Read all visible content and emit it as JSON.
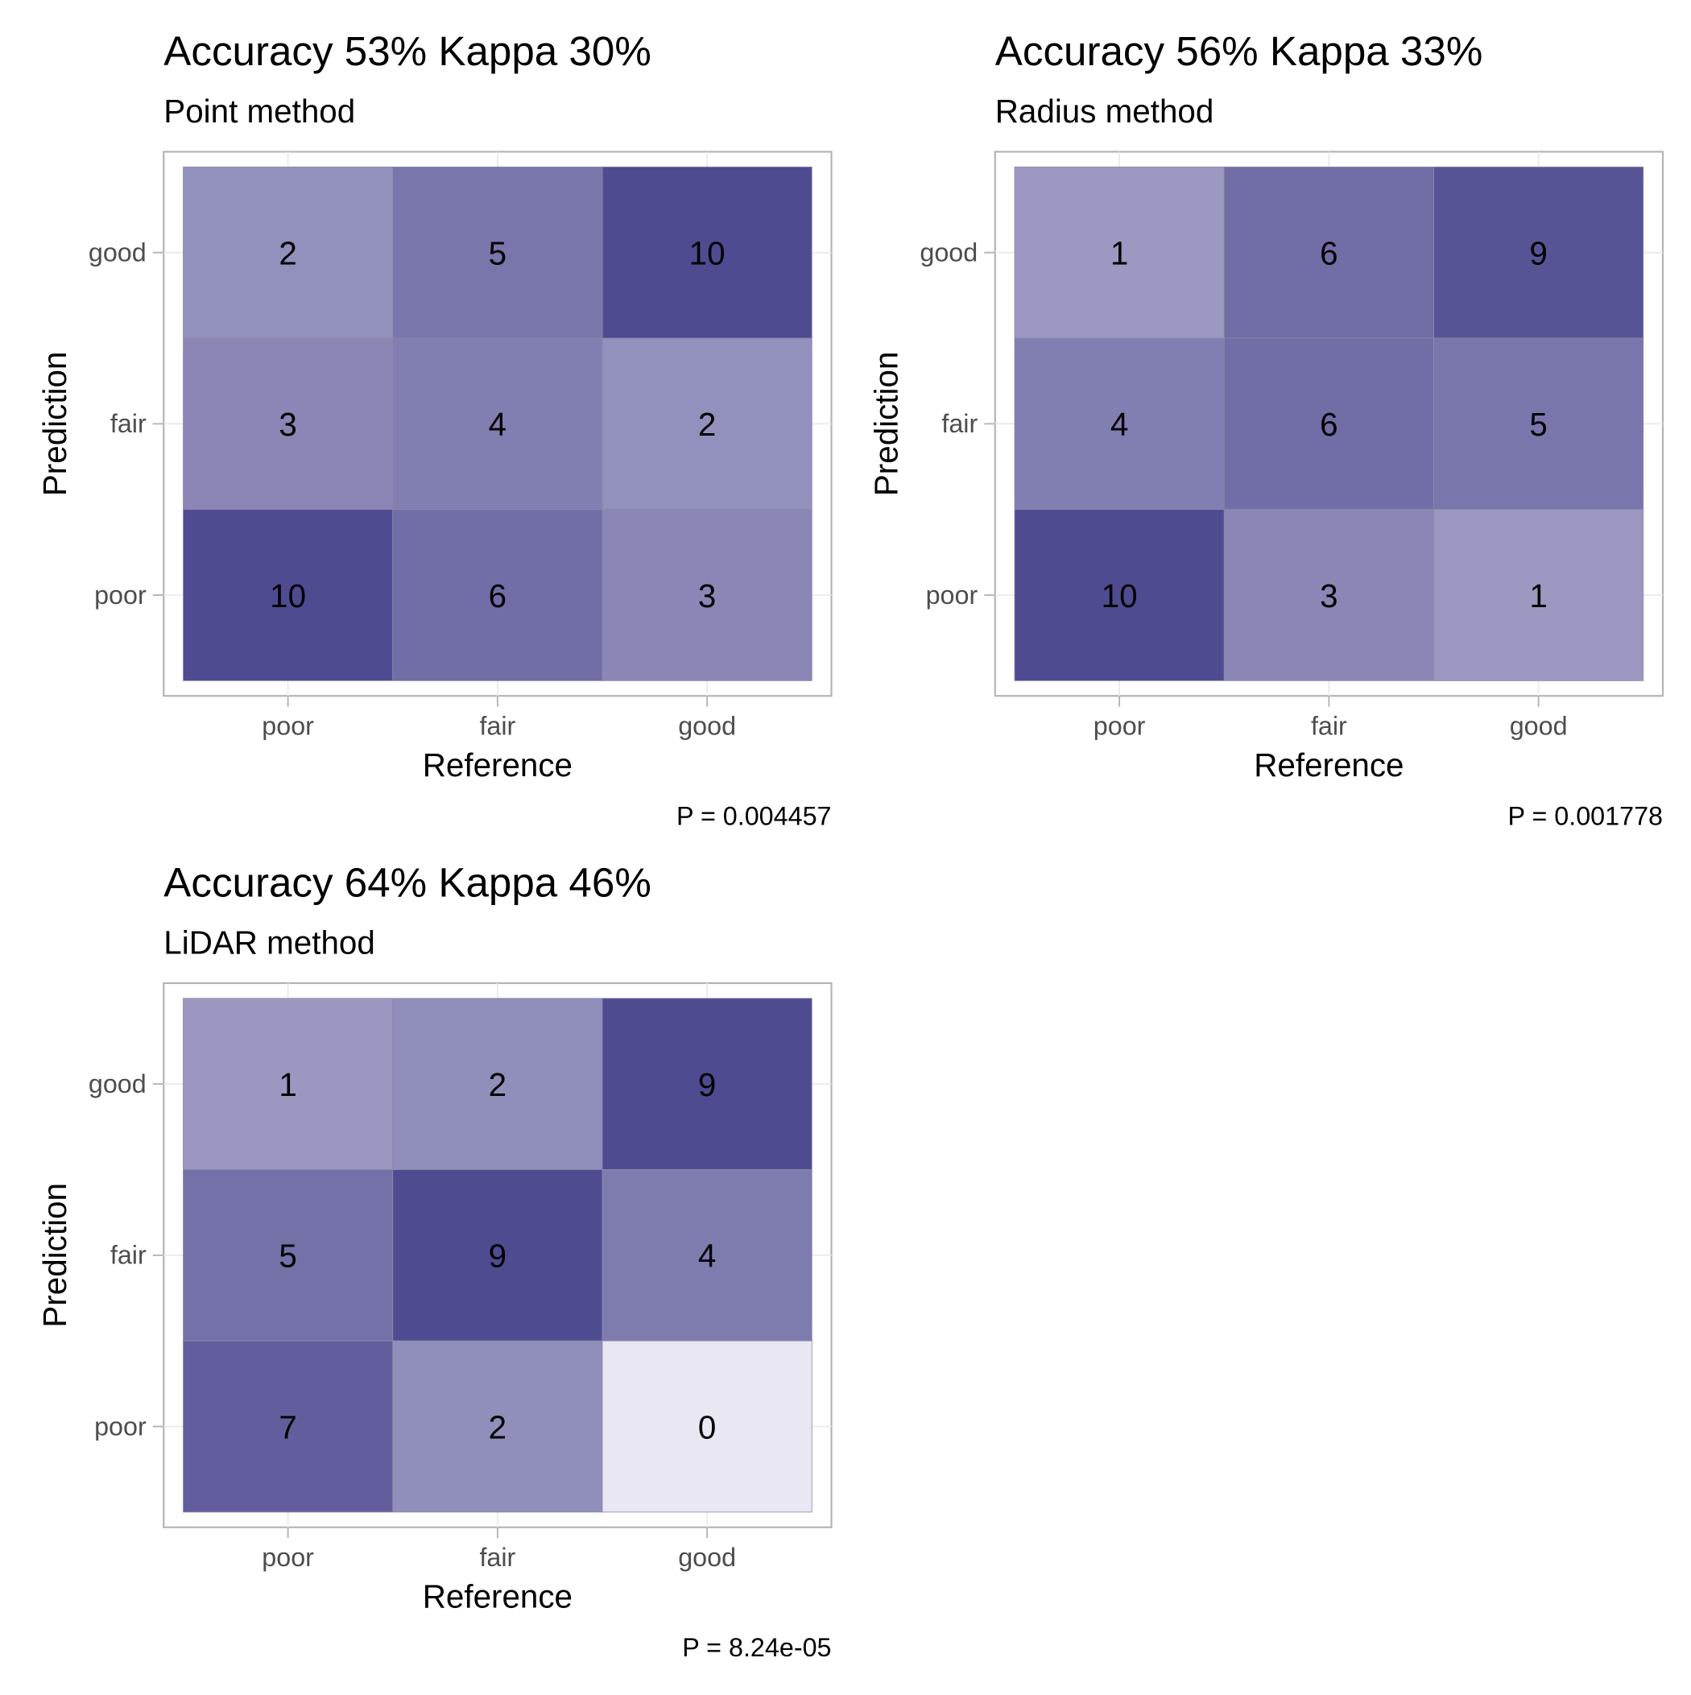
{
  "chart_data": [
    {
      "type": "heatmap",
      "title": "Accuracy 53% Kappa 30%",
      "subtitle": "Point method",
      "xlabel": "Reference",
      "ylabel": "Prediction",
      "x_categories": [
        "poor",
        "fair",
        "good"
      ],
      "y_categories": [
        "poor",
        "fair",
        "good"
      ],
      "cells": [
        {
          "x": "poor",
          "y": "good",
          "value": 2
        },
        {
          "x": "fair",
          "y": "good",
          "value": 5
        },
        {
          "x": "good",
          "y": "good",
          "value": 10
        },
        {
          "x": "poor",
          "y": "fair",
          "value": 3
        },
        {
          "x": "fair",
          "y": "fair",
          "value": 4
        },
        {
          "x": "good",
          "y": "fair",
          "value": 2
        },
        {
          "x": "poor",
          "y": "poor",
          "value": 10
        },
        {
          "x": "fair",
          "y": "poor",
          "value": 6
        },
        {
          "x": "good",
          "y": "poor",
          "value": 3
        }
      ],
      "caption": "P = 0.004457"
    },
    {
      "type": "heatmap",
      "title": "Accuracy 56% Kappa 33%",
      "subtitle": "Radius method",
      "xlabel": "Reference",
      "ylabel": "Prediction",
      "x_categories": [
        "poor",
        "fair",
        "good"
      ],
      "y_categories": [
        "poor",
        "fair",
        "good"
      ],
      "cells": [
        {
          "x": "poor",
          "y": "good",
          "value": 1
        },
        {
          "x": "fair",
          "y": "good",
          "value": 6
        },
        {
          "x": "good",
          "y": "good",
          "value": 9
        },
        {
          "x": "poor",
          "y": "fair",
          "value": 4
        },
        {
          "x": "fair",
          "y": "fair",
          "value": 6
        },
        {
          "x": "good",
          "y": "fair",
          "value": 5
        },
        {
          "x": "poor",
          "y": "poor",
          "value": 10
        },
        {
          "x": "fair",
          "y": "poor",
          "value": 3
        },
        {
          "x": "good",
          "y": "poor",
          "value": 1
        }
      ],
      "caption": "P = 0.001778"
    },
    {
      "type": "heatmap",
      "title": "Accuracy 64% Kappa 46%",
      "subtitle": "LiDAR method",
      "xlabel": "Reference",
      "ylabel": "Prediction",
      "x_categories": [
        "poor",
        "fair",
        "good"
      ],
      "y_categories": [
        "poor",
        "fair",
        "good"
      ],
      "cells": [
        {
          "x": "poor",
          "y": "good",
          "value": 1
        },
        {
          "x": "fair",
          "y": "good",
          "value": 2
        },
        {
          "x": "good",
          "y": "good",
          "value": 9
        },
        {
          "x": "poor",
          "y": "fair",
          "value": 5
        },
        {
          "x": "fair",
          "y": "fair",
          "value": 9
        },
        {
          "x": "good",
          "y": "fair",
          "value": 4
        },
        {
          "x": "poor",
          "y": "poor",
          "value": 7
        },
        {
          "x": "fair",
          "y": "poor",
          "value": 2
        },
        {
          "x": "good",
          "y": "poor",
          "value": 0
        }
      ],
      "caption": "P = 8.24e-05"
    }
  ],
  "colors": {
    "low": "#e8e7f2",
    "high": "#4f4b91",
    "panel_border": "#b3b3b3",
    "grid": "#ebebeb",
    "tick_text": "#4d4d4d",
    "text": "#000000"
  },
  "grid": true,
  "legend": "none"
}
